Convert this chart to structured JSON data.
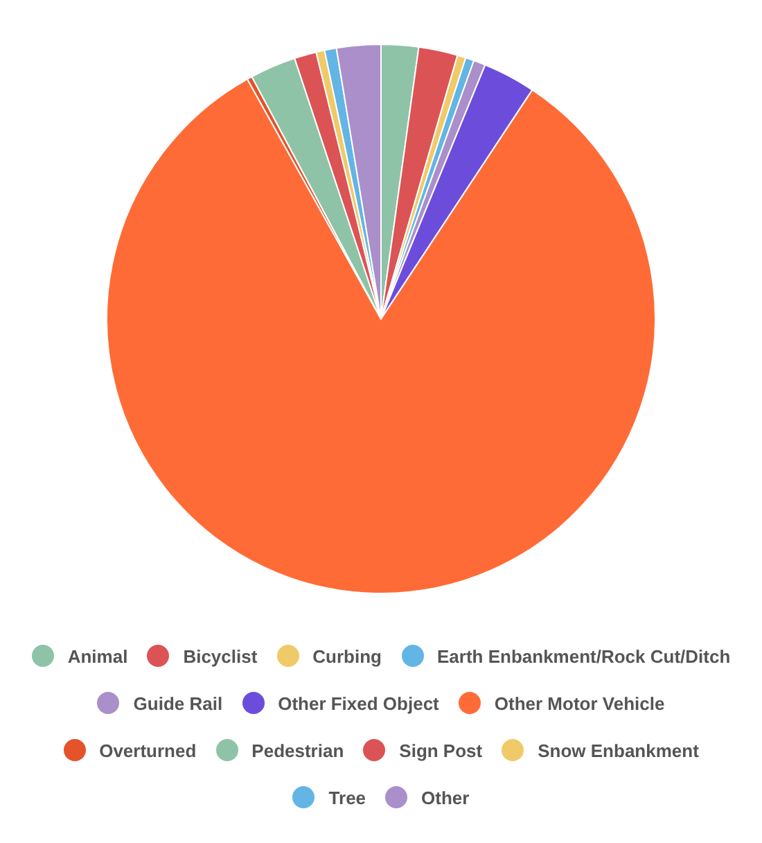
{
  "chart_data": {
    "type": "pie",
    "categories": [
      "Animal",
      "Bicyclist",
      "Curbing",
      "Earth Enbankment/Rock Cut/Ditch",
      "Guide Rail",
      "Other Fixed Object",
      "Other Motor Vehicle",
      "Overturned",
      "Pedestrian",
      "Sign Post",
      "Snow Enbankment",
      "Tree",
      "Other"
    ],
    "values": [
      2.2,
      2.3,
      0.5,
      0.5,
      0.7,
      3.1,
      82.6,
      0.3,
      2.7,
      1.3,
      0.5,
      0.7,
      2.6
    ],
    "colors": [
      "#8ec3a7",
      "#dc5356",
      "#f0ca68",
      "#62b5e5",
      "#aa8fcb",
      "#6c4ddb",
      "#ff6b36",
      "#e4532a",
      "#8ec3a7",
      "#dc5356",
      "#f0ca68",
      "#62b5e5",
      "#aa8fcb"
    ],
    "legend": "bottom"
  }
}
